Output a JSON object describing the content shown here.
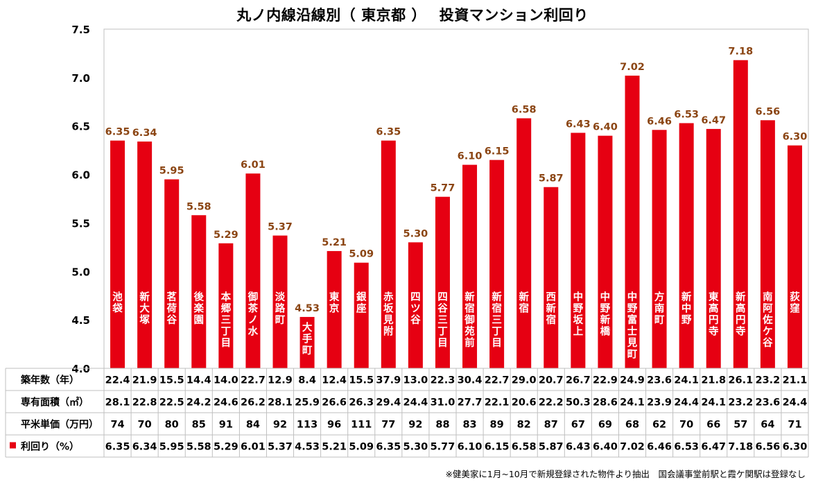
{
  "chart_data": {
    "type": "bar",
    "title": "丸ノ内線沿線別（ 東京都 ）　 投資マンション利回り",
    "categories": [
      "池袋",
      "新大塚",
      "茗荷谷",
      "後楽園",
      "本郷三丁目",
      "御茶ノ水",
      "淡路町",
      "大手町",
      "東京",
      "銀座",
      "赤坂見附",
      "四ツ谷",
      "四谷三丁目",
      "新宿御苑前",
      "新宿三丁目",
      "新宿",
      "西新宿",
      "中野坂上",
      "中野新橋",
      "中野富士見町",
      "方南町",
      "新中野",
      "東高円寺",
      "新高円寺",
      "南阿佐ケ谷",
      "荻窪"
    ],
    "series": [
      {
        "name": "利回り（%）",
        "color": "#e60012",
        "values": [
          6.35,
          6.34,
          5.95,
          5.58,
          5.29,
          6.01,
          5.37,
          4.53,
          5.21,
          5.09,
          6.35,
          5.3,
          5.77,
          6.1,
          6.15,
          6.58,
          5.87,
          6.43,
          6.4,
          7.02,
          6.46,
          6.53,
          6.47,
          7.18,
          6.56,
          6.3
        ]
      }
    ],
    "ylim": [
      4.0,
      7.5
    ],
    "yticks": [
      "4.0",
      "4.5",
      "5.0",
      "5.5",
      "6.0",
      "6.5",
      "7.0",
      "7.5"
    ],
    "grid": false,
    "label_color": "#8b4513",
    "xlabel": "",
    "ylabel": "",
    "table": {
      "rows": [
        {
          "header": "築年数（年）",
          "values": [
            "22.4",
            "21.9",
            "15.5",
            "14.4",
            "14.0",
            "22.7",
            "12.9",
            "8.4",
            "12.4",
            "15.5",
            "37.9",
            "13.0",
            "22.3",
            "30.4",
            "22.7",
            "29.0",
            "20.7",
            "26.7",
            "22.9",
            "24.9",
            "23.6",
            "24.1",
            "21.8",
            "26.1",
            "23.2",
            "21.1"
          ]
        },
        {
          "header": "専有面積（㎡）",
          "values": [
            "28.1",
            "22.8",
            "22.5",
            "24.2",
            "24.6",
            "26.2",
            "28.1",
            "25.9",
            "26.6",
            "26.3",
            "29.4",
            "24.4",
            "31.0",
            "27.7",
            "22.1",
            "20.6",
            "22.2",
            "50.3",
            "28.6",
            "24.1",
            "23.9",
            "24.4",
            "24.1",
            "23.2",
            "23.6",
            "24.4"
          ]
        },
        {
          "header": "平米単価（万円）",
          "values": [
            "74",
            "70",
            "80",
            "85",
            "91",
            "84",
            "92",
            "113",
            "96",
            "111",
            "77",
            "92",
            "88",
            "83",
            "89",
            "82",
            "87",
            "67",
            "69",
            "68",
            "62",
            "70",
            "66",
            "57",
            "64",
            "71"
          ]
        },
        {
          "header": "利回り（%）",
          "legend": true,
          "values": [
            "6.35",
            "6.34",
            "5.95",
            "5.58",
            "5.29",
            "6.01",
            "5.37",
            "4.53",
            "5.21",
            "5.09",
            "6.35",
            "5.30",
            "5.77",
            "6.10",
            "6.15",
            "6.58",
            "5.87",
            "6.43",
            "6.40",
            "7.02",
            "6.46",
            "6.53",
            "6.47",
            "7.18",
            "6.56",
            "6.30"
          ]
        }
      ]
    }
  },
  "footnote": "※健美家に1月~10月で新規登録された物件より抽出　国会議事堂前駅と霞ケ関駅は登録なし"
}
